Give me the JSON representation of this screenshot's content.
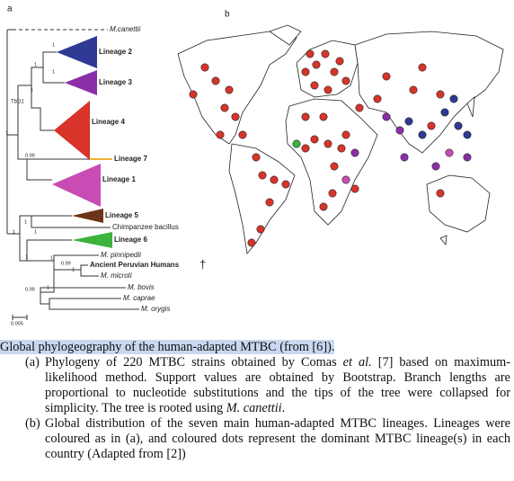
{
  "figure": {
    "panel_a": "a",
    "panel_b": "b",
    "tree": {
      "outgroup": "M.canettii",
      "lineages": [
        "Lineage 2",
        "Lineage 3",
        "Lineage 4",
        "Lineage 7",
        "Lineage 1",
        "Lineage 5",
        "Lineage 6"
      ],
      "tbd1": "TbD1",
      "animal": [
        "Chimpanzee bacillus",
        "M. pinnipedii",
        "Ancient Peruvian Humans",
        "M. microti",
        "M. bovis",
        "M. caprae",
        "M. orygis"
      ],
      "dagger": "†",
      "support_one": "1",
      "support_low": "0.99",
      "scale": "0.005"
    }
  },
  "caption": {
    "title": [
      "Global phylogeography of the human-adapted MTBC (from ",
      "[6]",
      ")."
    ],
    "items": [
      {
        "label": "(a)",
        "parts": [
          "Phylogeny of 220 MTBC strains obtained by Comas ",
          "et al.",
          " [7] based on maximum-likelihood method. Support values are obtained by Bootstrap. Branch lengths are proportional to nucleotide substitutions and the tips of the tree were collapsed for simplicity. The tree is rooted using ",
          "M. canettii",
          "."
        ]
      },
      {
        "label": "(b)",
        "parts": [
          "Global distribution of the seven main human-adapted MTBC lineages. Lineages were coloured as in (a), and coloured dots represent the dominant MTBC lineage(s) in each country (Adapted from [2])"
        ]
      }
    ]
  }
}
